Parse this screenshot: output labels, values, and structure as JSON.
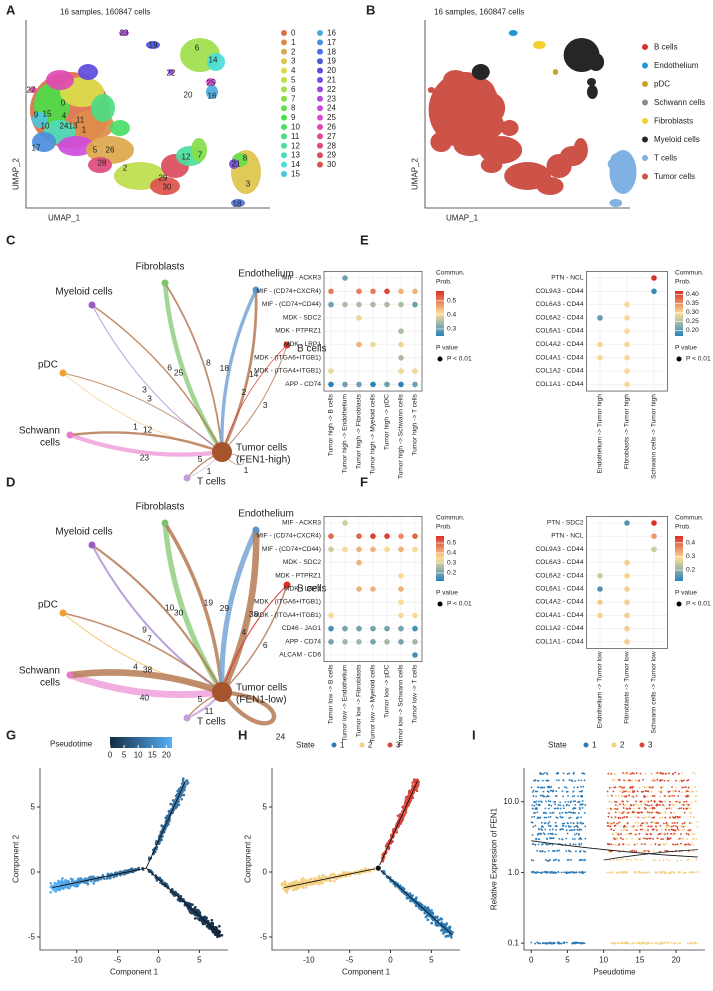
{
  "panel_letters": [
    "A",
    "B",
    "C",
    "D",
    "E",
    "F",
    "G",
    "H",
    "I"
  ],
  "umap_a": {
    "title": "16 samples, 160847 cells",
    "xlabel": "UMAP_1",
    "ylabel": "UMAP_2",
    "clusters": [
      "0",
      "1",
      "2",
      "3",
      "4",
      "5",
      "6",
      "7",
      "8",
      "9",
      "10",
      "11",
      "12",
      "13",
      "14",
      "15",
      "16",
      "17",
      "18",
      "19",
      "20",
      "21",
      "22",
      "23",
      "24",
      "25",
      "26",
      "27",
      "28",
      "29",
      "30"
    ]
  },
  "umap_b": {
    "title": "16 samples, 160847 cells",
    "xlabel": "UMAP_1",
    "ylabel": "UMAP_2",
    "cell_types": [
      {
        "name": "B cells",
        "color": "#d9322b"
      },
      {
        "name": "Endothelium",
        "color": "#1f97d4"
      },
      {
        "name": "pDC",
        "color": "#c9a227"
      },
      {
        "name": "Schwann cells",
        "color": "#8c8c8c"
      },
      {
        "name": "Fibroblasts",
        "color": "#f2d12a"
      },
      {
        "name": "Myeloid cells",
        "color": "#262626"
      },
      {
        "name": "T cells",
        "color": "#80b1e3"
      },
      {
        "name": "Tumor cells",
        "color": "#cd5248"
      }
    ]
  },
  "networks": [
    {
      "nodes": [
        {
          "name": [
            "Fibroblasts"
          ],
          "color": "#7cc46a"
        },
        {
          "name": [
            "Endothelium"
          ],
          "color": "#5b95cc"
        },
        {
          "name": [
            "B cells"
          ],
          "color": "#d9302a"
        },
        {
          "name": [
            "Myeloid cells"
          ],
          "color": "#9a5cc0"
        },
        {
          "name": [
            "pDC"
          ],
          "color": "#f0a030"
        },
        {
          "name": [
            "Schwann",
            "cells"
          ],
          "color": "#e47cc8"
        },
        {
          "name": [
            "T cells"
          ],
          "color": "#c49ed8"
        },
        {
          "name": [
            "Tumor cells",
            "(FEN1-high)"
          ],
          "color": "#a5542b"
        }
      ],
      "edges": [
        {
          "from": 0,
          "to": 7,
          "value": 25,
          "color": "#93cf82"
        },
        {
          "from": 7,
          "to": 0,
          "value": 8,
          "color": "#b57a52"
        },
        {
          "from": 1,
          "to": 7,
          "value": 18,
          "color": "#74a6d4"
        },
        {
          "from": 7,
          "to": 1,
          "value": 14,
          "color": "#b57a52"
        },
        {
          "from": 2,
          "to": 7,
          "value": 2,
          "color": "#d9302a"
        },
        {
          "from": 7,
          "to": 2,
          "value": 3,
          "color": "#b57a52"
        },
        {
          "from": 3,
          "to": 7,
          "value": 3,
          "color": "#ad8fd3"
        },
        {
          "from": 7,
          "to": 3,
          "value": 6,
          "color": "#b57a52"
        },
        {
          "from": 4,
          "to": 7,
          "value": 1,
          "color": "#f2bf6b"
        },
        {
          "from": 7,
          "to": 4,
          "value": 3,
          "color": "#b57a52"
        },
        {
          "from": 5,
          "to": 7,
          "value": 23,
          "color": "#f0a0da"
        },
        {
          "from": 7,
          "to": 5,
          "value": 12,
          "color": "#b57a52"
        },
        {
          "from": 6,
          "to": 7,
          "value": 1,
          "color": "#caa8dc"
        },
        {
          "from": 7,
          "to": 6,
          "value": 5,
          "color": "#b57a52"
        },
        {
          "from": 7,
          "to": 7,
          "value": 1,
          "color": "#b57a52"
        }
      ]
    },
    {
      "nodes": [
        {
          "name": [
            "Fibroblasts"
          ],
          "color": "#7cc46a"
        },
        {
          "name": [
            "Endothelium"
          ],
          "color": "#5b95cc"
        },
        {
          "name": [
            "B cells"
          ],
          "color": "#d9302a"
        },
        {
          "name": [
            "Myeloid cells"
          ],
          "color": "#9a5cc0"
        },
        {
          "name": [
            "pDC"
          ],
          "color": "#f0a030"
        },
        {
          "name": [
            "Schwann",
            "cells"
          ],
          "color": "#e47cc8"
        },
        {
          "name": [
            "T cells"
          ],
          "color": "#c49ed8"
        },
        {
          "name": [
            "Tumor cells",
            "(FEN1-low)"
          ],
          "color": "#a5542b"
        }
      ],
      "edges": [
        {
          "from": 0,
          "to": 7,
          "value": 30,
          "color": "#93cf82"
        },
        {
          "from": 7,
          "to": 0,
          "value": 19,
          "color": "#b57a52"
        },
        {
          "from": 1,
          "to": 7,
          "value": 29,
          "color": "#74a6d4"
        },
        {
          "from": 7,
          "to": 1,
          "value": 38,
          "color": "#b57a52"
        },
        {
          "from": 2,
          "to": 7,
          "value": 4,
          "color": "#d9302a"
        },
        {
          "from": 7,
          "to": 2,
          "value": 6,
          "color": "#b57a52"
        },
        {
          "from": 3,
          "to": 7,
          "value": 9,
          "color": "#ad8fd3"
        },
        {
          "from": 7,
          "to": 3,
          "value": 10,
          "color": "#b57a52"
        },
        {
          "from": 4,
          "to": 7,
          "value": 4,
          "color": "#f2bf6b"
        },
        {
          "from": 7,
          "to": 4,
          "value": 7,
          "color": "#b57a52"
        },
        {
          "from": 5,
          "to": 7,
          "value": 40,
          "color": "#f0a0da"
        },
        {
          "from": 7,
          "to": 5,
          "value": 38,
          "color": "#b57a52"
        },
        {
          "from": 6,
          "to": 7,
          "value": 11,
          "color": "#caa8dc"
        },
        {
          "from": 7,
          "to": 6,
          "value": 5,
          "color": "#b57a52"
        },
        {
          "from": 7,
          "to": 7,
          "value": 24,
          "color": "#b57a52"
        }
      ]
    }
  ],
  "dotplots": [
    {
      "rows": [
        "MIF - ACKR3",
        "MIF - (CD74+CXCR4)",
        "MIF - (CD74+CD44)",
        "MDK - SDC2",
        "MDK - PTPRZ1",
        "MDK - LRP1",
        "MDK - (ITGA6+ITGB1)",
        "MDK - (ITGA4+ITGB1)",
        "APP - CD74"
      ],
      "columns": [
        "Tumor high -> B cells",
        "Tumor high -> Endothelium",
        "Tumor high -> Fibroblasts",
        "Tumor high -> Myeloid cells",
        "Tumor high -> pDC",
        "Tumor high -> Schwann cells",
        "Tumor high -> T cells"
      ],
      "values": [
        [
          null,
          0.3,
          null,
          null,
          null,
          null,
          null
        ],
        [
          0.5,
          null,
          0.5,
          0.5,
          0.55,
          0.45,
          0.45
        ],
        [
          0.3,
          0.35,
          0.35,
          0.35,
          0.35,
          0.35,
          0.3
        ],
        [
          null,
          null,
          0.4,
          null,
          null,
          null,
          null
        ],
        [
          null,
          null,
          null,
          null,
          null,
          0.35,
          null
        ],
        [
          null,
          null,
          0.45,
          0.4,
          null,
          0.4,
          null
        ],
        [
          null,
          null,
          null,
          null,
          null,
          0.35,
          null
        ],
        [
          0.4,
          null,
          null,
          null,
          null,
          0.4,
          0.4
        ],
        [
          0.25,
          0.3,
          0.3,
          0.25,
          0.3,
          0.25,
          0.3
        ]
      ],
      "clim": [
        0.25,
        0.57
      ],
      "cticks": [
        0.3,
        0.4,
        0.5
      ],
      "legend_title": [
        "Commun.",
        "Prob."
      ],
      "pvalue_title": "P value",
      "pvalue_label": "P < 0.01"
    },
    {
      "rows": [
        "PTN - NCL",
        "COL9A3 - CD44",
        "COL6A3 - CD44",
        "COL6A2 - CD44",
        "COL6A1 - CD44",
        "COL4A2 - CD44",
        "COL4A1 - CD44",
        "COL1A2 - CD44",
        "COL1A1 - CD44"
      ],
      "columns": [
        "Endothelium -> Tumor high",
        "Fibroblasts -> Tumor high",
        "Schwann cells -> Tumor high"
      ],
      "values": [
        [
          null,
          null,
          0.42
        ],
        [
          null,
          null,
          0.18
        ],
        [
          null,
          0.3,
          null
        ],
        [
          0.2,
          0.3,
          null
        ],
        [
          null,
          0.3,
          null
        ],
        [
          0.3,
          0.3,
          null
        ],
        [
          0.3,
          0.3,
          null
        ],
        [
          null,
          0.3,
          null
        ],
        [
          null,
          0.3,
          null
        ]
      ],
      "clim": [
        0.17,
        0.42
      ],
      "cticks": [
        {
          "value": 0.2,
          "label": "0.20"
        },
        0.25,
        {
          "value": 0.3,
          "label": "0.30"
        },
        0.35,
        {
          "value": 0.4,
          "label": "0.40"
        }
      ],
      "legend_title": [
        "Commun.",
        "Prob."
      ],
      "pvalue_title": "P value",
      "pvalue_label": "P < 0.01"
    },
    {
      "rows": [
        "MIF - ACKR3",
        "MIF - (CD74+CXCR4)",
        "MIF - (CD74+CD44)",
        "MDK - SDC2",
        "MDK - PTPRZ1",
        "MDK - LRP1",
        "MDK - (ITGA6+ITGB1)",
        "MDK - (ITGA4+ITGB1)",
        "CD46 - JAG1",
        "APP - CD74",
        "ALCAM - CD6"
      ],
      "columns": [
        "Tumor low -> B cells",
        "Tumor low -> Endothelium",
        "Tumor low -> Fibroblasts",
        "Tumor low -> Myeloid cells",
        "Tumor low -> pDC",
        "Tumor low -> Schwann cells",
        "Tumor low -> T cells"
      ],
      "values": [
        [
          null,
          0.3,
          null,
          null,
          null,
          null,
          null
        ],
        [
          0.5,
          null,
          0.5,
          0.55,
          0.55,
          0.45,
          0.5
        ],
        [
          0.3,
          0.35,
          0.4,
          0.4,
          0.35,
          0.4,
          0.35
        ],
        [
          null,
          null,
          0.4,
          null,
          null,
          null,
          null
        ],
        [
          null,
          null,
          null,
          null,
          null,
          0.35,
          null
        ],
        [
          null,
          null,
          0.4,
          0.4,
          null,
          0.4,
          null
        ],
        [
          null,
          null,
          null,
          null,
          null,
          0.35,
          null
        ],
        [
          0.35,
          null,
          null,
          null,
          null,
          0.35,
          0.35
        ],
        [
          0.15,
          0.2,
          0.2,
          0.2,
          0.2,
          0.2,
          0.15
        ],
        [
          0.2,
          0.25,
          0.25,
          0.2,
          0.25,
          0.2,
          0.25
        ],
        [
          null,
          null,
          null,
          null,
          null,
          null,
          0.15
        ]
      ],
      "clim": [
        0.12,
        0.57
      ],
      "cticks": [
        0.2,
        0.3,
        0.4,
        0.5
      ],
      "legend_title": [
        "Commun.",
        "Prob."
      ],
      "pvalue_title": "P value",
      "pvalue_label": "P < 0.01"
    },
    {
      "rows": [
        "PTN - SDC2",
        "PTN - NCL",
        "COL9A3 - CD44",
        "COL6A3 - CD44",
        "COL6A2 - CD44",
        "COL6A1 - CD44",
        "COL4A2 - CD44",
        "COL4A1 - CD44",
        "COL1A2 - CD44",
        "COL1A1 - CD44"
      ],
      "columns": [
        "Endothelium -> Tumor low",
        "Fibroblasts -> Tumor low",
        "Schwann cells -> Tumor low"
      ],
      "values": [
        [
          null,
          0.15,
          0.45
        ],
        [
          null,
          null,
          0.35
        ],
        [
          null,
          null,
          0.25
        ],
        [
          null,
          0.3,
          null
        ],
        [
          0.25,
          0.3,
          null
        ],
        [
          0.15,
          0.3,
          null
        ],
        [
          0.3,
          0.3,
          null
        ],
        [
          0.3,
          0.3,
          null
        ],
        [
          null,
          0.3,
          null
        ],
        [
          null,
          0.3,
          null
        ]
      ],
      "clim": [
        0.12,
        0.45
      ],
      "cticks": [
        0.2,
        0.3,
        0.4
      ],
      "legend_title": [
        "Commun.",
        "Prob."
      ],
      "pvalue_title": "P value",
      "pvalue_label": "P < 0.01"
    }
  ],
  "chart_data": [
    {
      "type": "trajectory",
      "xlabel": "Component 1",
      "ylabel": "Component 2",
      "xlim": [
        -14.5,
        8.5
      ],
      "ylim": [
        -6,
        8
      ],
      "xticks": [
        -10,
        -5,
        0,
        5
      ],
      "yticks": [
        -5,
        0,
        5
      ],
      "color_by": "pseudotime",
      "colorbar": {
        "title": "Pseudotime",
        "clim": [
          0,
          22
        ],
        "ticks": [
          0,
          5,
          10,
          15,
          20
        ],
        "colors": [
          "#132b43",
          "#56b1f7"
        ]
      }
    },
    {
      "type": "trajectory",
      "xlabel": "Component 1",
      "ylabel": "Component 2",
      "xlim": [
        -14.5,
        8.5
      ],
      "ylim": [
        -6,
        8
      ],
      "xticks": [
        -10,
        -5,
        0,
        5
      ],
      "yticks": [
        -5,
        0,
        5
      ],
      "color_by": "state",
      "legend_title": "State",
      "states": [
        {
          "name": "1",
          "color": "#2c7bb6"
        },
        {
          "name": "2",
          "color": "#f5cf7e"
        },
        {
          "name": "3",
          "color": "#d5473d"
        }
      ]
    },
    {
      "type": "scatter",
      "xlabel": "Pseudotime",
      "ylabel": "Relative Expression of FEN1",
      "log_y": true,
      "xlim": [
        -1,
        24
      ],
      "ylim": [
        0.08,
        30
      ],
      "xticks": [
        0,
        5,
        10,
        15,
        20
      ],
      "yticks": [
        0.1,
        {
          "value": 1,
          "label": "1.0"
        },
        {
          "value": 10,
          "label": "10.0"
        }
      ],
      "legend_title": "State",
      "states": [
        {
          "name": "1",
          "color": "#2c7bb6"
        },
        {
          "name": "2",
          "color": "#f5cf7e"
        },
        {
          "name": "3",
          "color": "#d5473d"
        }
      ]
    }
  ]
}
